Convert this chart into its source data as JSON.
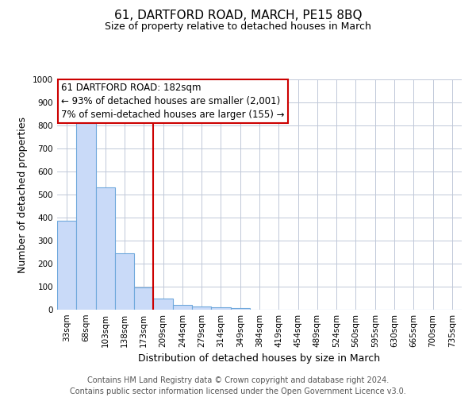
{
  "title": "61, DARTFORD ROAD, MARCH, PE15 8BQ",
  "subtitle": "Size of property relative to detached houses in March",
  "xlabel": "Distribution of detached houses by size in March",
  "ylabel": "Number of detached properties",
  "categories": [
    "33sqm",
    "68sqm",
    "103sqm",
    "138sqm",
    "173sqm",
    "209sqm",
    "244sqm",
    "279sqm",
    "314sqm",
    "349sqm",
    "384sqm",
    "419sqm",
    "454sqm",
    "489sqm",
    "524sqm",
    "560sqm",
    "595sqm",
    "630sqm",
    "665sqm",
    "700sqm",
    "735sqm"
  ],
  "values": [
    385,
    830,
    530,
    245,
    95,
    50,
    20,
    15,
    10,
    8,
    0,
    0,
    0,
    0,
    0,
    0,
    0,
    0,
    0,
    0,
    0
  ],
  "bar_color": "#c9daf8",
  "bar_edge_color": "#6fa8dc",
  "redline_color": "#cc0000",
  "annotation_text": "61 DARTFORD ROAD: 182sqm\n← 93% of detached houses are smaller (2,001)\n7% of semi-detached houses are larger (155) →",
  "annotation_box_color": "#cc0000",
  "ylim": [
    0,
    1000
  ],
  "yticks": [
    0,
    100,
    200,
    300,
    400,
    500,
    600,
    700,
    800,
    900,
    1000
  ],
  "footer": "Contains HM Land Registry data © Crown copyright and database right 2024.\nContains public sector information licensed under the Open Government Licence v3.0.",
  "bg_color": "#ffffff",
  "grid_color": "#c0c8d8",
  "title_fontsize": 11,
  "subtitle_fontsize": 9,
  "axis_label_fontsize": 9,
  "tick_fontsize": 7.5,
  "annotation_fontsize": 8.5,
  "footer_fontsize": 7
}
